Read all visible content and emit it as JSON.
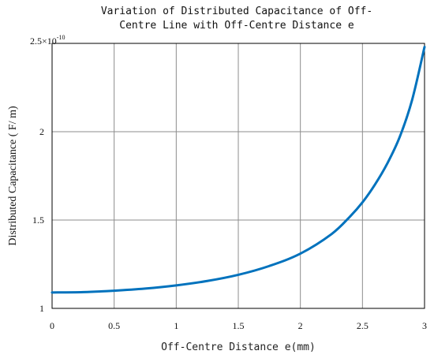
{
  "chart_data": {
    "type": "line",
    "title": [
      "Variation of Distributed Capacitance of Off-",
      "Centre Line with Off-Centre Distance e"
    ],
    "xlabel": "Off-Centre Distance e(mm)",
    "ylabel": "Distributed Capacitance ( F/ m)",
    "y_scale_label": "×10",
    "y_scale_exponent": "-10",
    "xlim": [
      0,
      3
    ],
    "ylim": [
      1,
      2.5
    ],
    "x_ticks": [
      "0",
      "0.5",
      "1",
      "1.5",
      "2",
      "2.5",
      "3"
    ],
    "y_ticks": [
      "1",
      "1.5",
      "2",
      "2.5"
    ],
    "grid": true,
    "series": [
      {
        "color": "#0072bd",
        "x": [
          0,
          0.25,
          0.5,
          0.75,
          1.0,
          1.25,
          1.5,
          1.75,
          2.0,
          2.25,
          2.4,
          2.5,
          2.6,
          2.7,
          2.8,
          2.9,
          3.0
        ],
        "y": [
          1.09,
          1.092,
          1.1,
          1.112,
          1.13,
          1.155,
          1.19,
          1.24,
          1.31,
          1.42,
          1.52,
          1.6,
          1.7,
          1.82,
          1.97,
          2.18,
          2.48
        ]
      }
    ]
  }
}
